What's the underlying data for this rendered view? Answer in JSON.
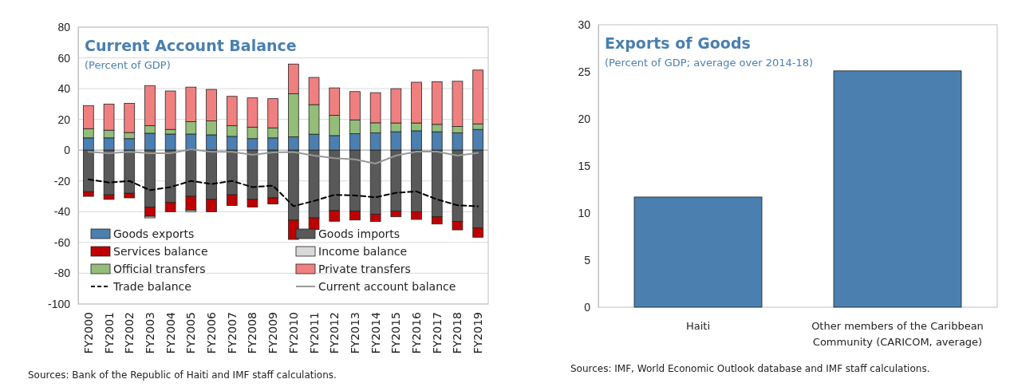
{
  "chart_data": [
    {
      "type": "bar",
      "title": "Current Account Balance",
      "subtitle": "(Percent of GDP)",
      "stacked": true,
      "grid": "y",
      "legend": "bottom",
      "categories": [
        "FY2000",
        "FY2001",
        "FY2002",
        "FY2003",
        "FY2004",
        "FY2005",
        "FY2006",
        "FY2007",
        "FY2008",
        "FY2009",
        "FY2010",
        "FY2011",
        "FY2012",
        "FY2013",
        "FY2014",
        "FY2015",
        "FY2016",
        "FY2017",
        "FY2018",
        "FY2019"
      ],
      "ylim": [
        -100,
        80
      ],
      "yticks": [
        -100,
        -80,
        -60,
        -40,
        -20,
        0,
        20,
        40,
        60,
        80
      ],
      "series": [
        {
          "name": "Goods exports",
          "color": "#4a7fb0",
          "values": [
            8,
            8,
            7.5,
            11,
            10.5,
            10.5,
            10,
            9,
            7.5,
            8,
            8.7,
            10.4,
            9.5,
            10.7,
            11.3,
            12,
            12.6,
            12,
            11.3,
            13.5
          ]
        },
        {
          "name": "Goods imports",
          "color": "#595959",
          "values": [
            -27,
            -29,
            -28,
            -37,
            -34,
            -30,
            -32,
            -29,
            -32,
            -31,
            -45.5,
            -44,
            -39.3,
            -39.5,
            -41.6,
            -39.5,
            -40,
            -43.3,
            -46.4,
            -50.6
          ]
        },
        {
          "name": "Services balance",
          "color": "#c00000",
          "values": [
            -3,
            -3,
            -3,
            -6,
            -6,
            -9,
            -8,
            -7,
            -5,
            -4,
            -12.5,
            -7.6,
            -6.9,
            -5.9,
            -4.8,
            -3.8,
            -5,
            -4.7,
            -5.4,
            -6
          ]
        },
        {
          "name": "Income balance",
          "color": "#d9d9d9",
          "values": [
            null,
            null,
            null,
            -1,
            null,
            -1,
            null,
            null,
            null,
            null,
            null,
            null,
            null,
            null,
            null,
            null,
            null,
            null,
            null,
            null
          ]
        },
        {
          "name": "Official transfers",
          "color": "#93bd78",
          "values": [
            6,
            5,
            4,
            5,
            3,
            8,
            9,
            7,
            7.5,
            6.5,
            28,
            19.2,
            13.2,
            9,
            6.5,
            5.7,
            5.1,
            4.8,
            4.1,
            3.6
          ]
        },
        {
          "name": "Private transfers",
          "color": "#f08080",
          "values": [
            15,
            17,
            19,
            26,
            25,
            22.5,
            20.5,
            19,
            19,
            19,
            19.3,
            17.7,
            17.8,
            18.4,
            19.6,
            22.3,
            26.5,
            27.7,
            29.4,
            35
          ]
        },
        {
          "name": "Trade balance",
          "type": "line",
          "line_style": "dashed",
          "color": "#000000",
          "values": [
            -19,
            -21,
            -20,
            -26,
            -24,
            -20,
            -22,
            -20,
            -24,
            -23,
            -36.4,
            -33,
            -29,
            -29.4,
            -30.6,
            -27.7,
            -26.8,
            -32,
            -35.8,
            -36.5
          ]
        },
        {
          "name": "Current account balance",
          "type": "line",
          "line_style": "solid",
          "color": "#999999",
          "values": [
            -1,
            -2,
            -1,
            -2,
            -2,
            0.5,
            -1,
            -1,
            -3,
            -1.5,
            -1.2,
            -3.5,
            -5.2,
            -6,
            -8.7,
            -3.5,
            -0.9,
            -0.9,
            -3.5,
            -1.7
          ]
        }
      ],
      "annotations": [
        "Sources: Bank of the Republic of Haiti and IMF staff calculations."
      ]
    },
    {
      "type": "bar",
      "title": "Exports of Goods",
      "subtitle": "(Percent of GDP; average over 2014-18)",
      "grid": false,
      "categories": [
        "Haiti",
        "Other members of the Caribbean Community (CARICOM, average)"
      ],
      "ylim": [
        0,
        30
      ],
      "yticks": [
        0,
        5,
        10,
        15,
        20,
        25,
        30
      ],
      "series": [
        {
          "color": "#4a7fb0",
          "values": [
            11.7,
            25.1
          ]
        }
      ],
      "annotations": [
        "Sources: IMF, World Economic Outlook database and IMF staff calculations."
      ]
    }
  ]
}
